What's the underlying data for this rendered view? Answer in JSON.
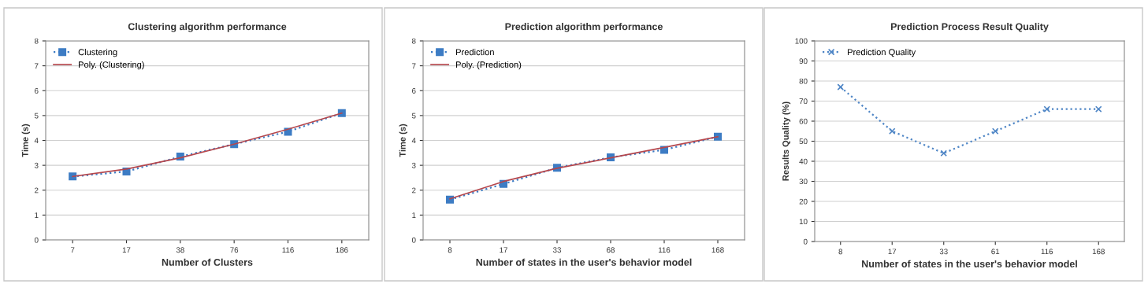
{
  "chart_data": [
    {
      "type": "line",
      "title": "Clustering algorithm performance",
      "xlabel": "Number of Clusters",
      "ylabel": "Time (s)",
      "categories": [
        "7",
        "17",
        "38",
        "76",
        "116",
        "186"
      ],
      "ylim": [
        0,
        8
      ],
      "yticks": [
        0,
        1,
        2,
        3,
        4,
        5,
        6,
        7,
        8
      ],
      "grid": "y",
      "legend": "top left",
      "series": [
        {
          "name": "Clustering",
          "color": "#3d7cc4",
          "marker": "square",
          "line_style": "dotted",
          "values": [
            2.55,
            2.75,
            3.35,
            3.85,
            4.35,
            5.1
          ]
        },
        {
          "name": "Poly. (Clustering)",
          "color": "#b5474d",
          "marker": "none",
          "line_style": "solid",
          "values": [
            2.55,
            2.85,
            3.3,
            3.85,
            4.45,
            5.1
          ]
        }
      ]
    },
    {
      "type": "line",
      "title": "Prediction algorithm performance",
      "xlabel": "Number of states in the user's behavior model",
      "ylabel": "Time (s)",
      "categories": [
        "8",
        "17",
        "33",
        "68",
        "116",
        "168"
      ],
      "ylim": [
        0,
        8
      ],
      "yticks": [
        0,
        1,
        2,
        3,
        4,
        5,
        6,
        7,
        8
      ],
      "grid": "y",
      "legend": "top left",
      "series": [
        {
          "name": "Prediction",
          "color": "#3d7cc4",
          "marker": "square",
          "line_style": "dotted",
          "values": [
            1.62,
            2.25,
            2.9,
            3.32,
            3.62,
            4.15
          ]
        },
        {
          "name": "Poly. (Prediction)",
          "color": "#b5474d",
          "marker": "none",
          "line_style": "solid",
          "values": [
            1.65,
            2.35,
            2.88,
            3.3,
            3.72,
            4.15
          ]
        }
      ]
    },
    {
      "type": "line",
      "title": "Prediction Process Result Quality",
      "xlabel": "Number of states in the user's behavior model",
      "ylabel": "Results Quality (%)",
      "categories": [
        "8",
        "17",
        "33",
        "61",
        "116",
        "168"
      ],
      "ylim": [
        0,
        100
      ],
      "yticks": [
        0,
        10,
        20,
        30,
        40,
        50,
        60,
        70,
        80,
        90,
        100
      ],
      "grid": "y",
      "legend": "top left",
      "series": [
        {
          "name": "Prediction Quality",
          "color": "#4f86c6",
          "marker": "cross",
          "line_style": "dotted",
          "values": [
            77,
            55,
            44,
            55,
            66,
            66
          ]
        }
      ]
    }
  ]
}
